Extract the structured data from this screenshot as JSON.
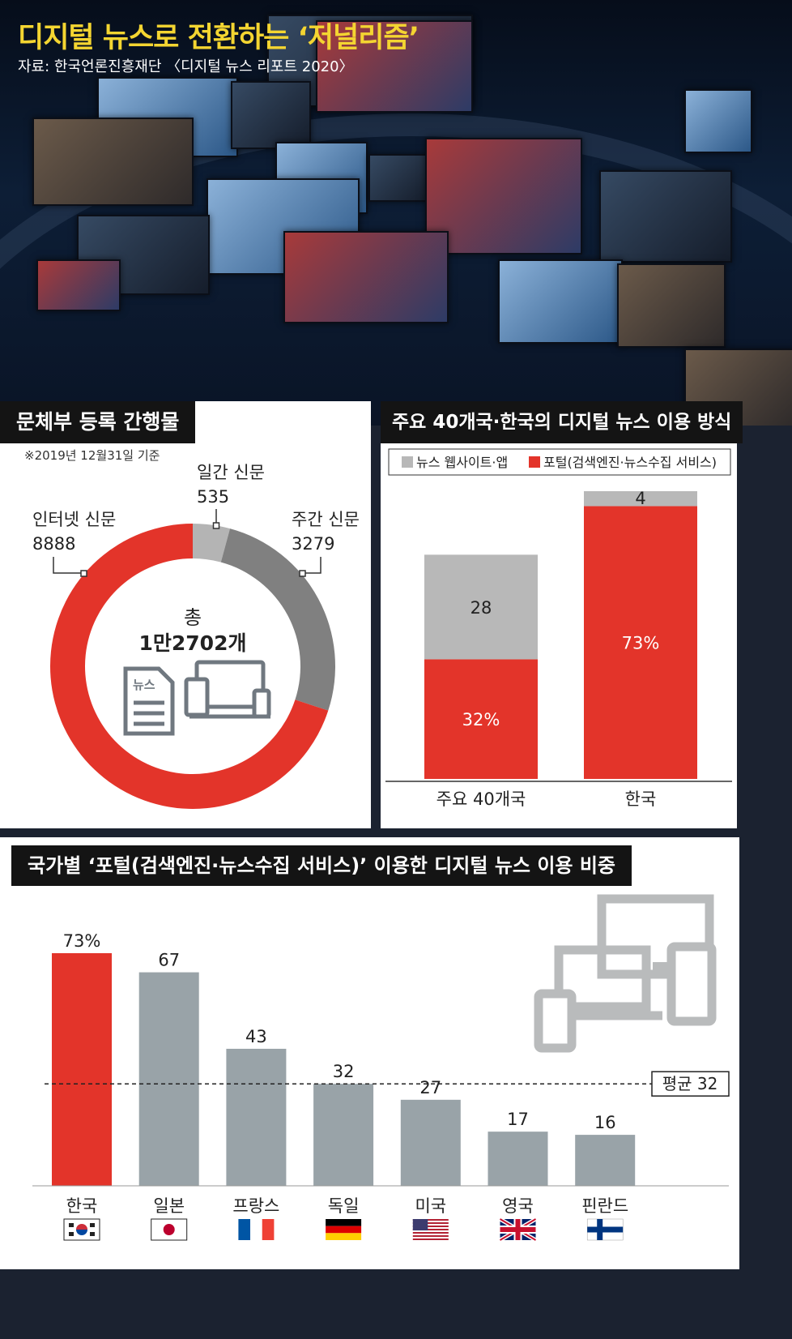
{
  "header": {
    "title": "디지털 뉴스로 전환하는 ‘저널리즘’",
    "source": "자료: 한국언론진흥재단 〈디지털 뉴스 리포트 2020〉"
  },
  "panel1": {
    "title": "문체부 등록 간행물",
    "date_note": "※2019년 12월31일 기준",
    "center_line1": "총",
    "center_line2": "1만2702개",
    "icon_label": "뉴스",
    "colors": {
      "internet": "#e3342a",
      "daily": "#b4b4b4",
      "weekly": "#808080"
    }
  },
  "panel2": {
    "title": "주요 40개국·한국의 디지털 뉴스 이용 방식",
    "legend_web": "뉴스 웹사이트·앱",
    "legend_portal": "포털(검색엔진·뉴스수집 서비스)",
    "colors": {
      "web": "#b8b8b8",
      "portal": "#e3342a"
    }
  },
  "panel3": {
    "title": "국가별 ‘포털(검색엔진·뉴스수집 서비스)’ 이용한 디지털 뉴스 이용 비중",
    "average_label": "평균 32",
    "colors": {
      "highlight": "#e3342a",
      "bar": "#99a3a8"
    }
  },
  "chart_data": [
    {
      "type": "pie",
      "title": "문체부 등록 간행물",
      "labels": [
        "인터넷 신문",
        "일간 신문",
        "주간 신문"
      ],
      "values": [
        8888,
        535,
        3279
      ],
      "total": 12702
    },
    {
      "type": "bar",
      "title": "주요 40개국·한국의 디지털 뉴스 이용 방식",
      "categories": [
        "주요 40개국",
        "한국"
      ],
      "series": [
        {
          "name": "포털(검색엔진·뉴스수집 서비스)",
          "values": [
            32,
            73
          ],
          "value_labels": [
            "32%",
            "73%"
          ]
        },
        {
          "name": "뉴스 웹사이트·앱",
          "values": [
            28,
            4
          ],
          "value_labels": [
            "28",
            "4"
          ]
        }
      ],
      "stacked": true
    },
    {
      "type": "bar",
      "title": "국가별 ‘포털(검색엔진·뉴스수집 서비스)’ 이용한 디지털 뉴스 이용 비중",
      "categories": [
        "한국",
        "일본",
        "프랑스",
        "독일",
        "미국",
        "영국",
        "핀란드"
      ],
      "values": [
        73,
        67,
        43,
        32,
        27,
        17,
        16
      ],
      "value_labels": [
        "73%",
        "67",
        "43",
        "32",
        "27",
        "17",
        "16"
      ],
      "average": 32
    }
  ]
}
